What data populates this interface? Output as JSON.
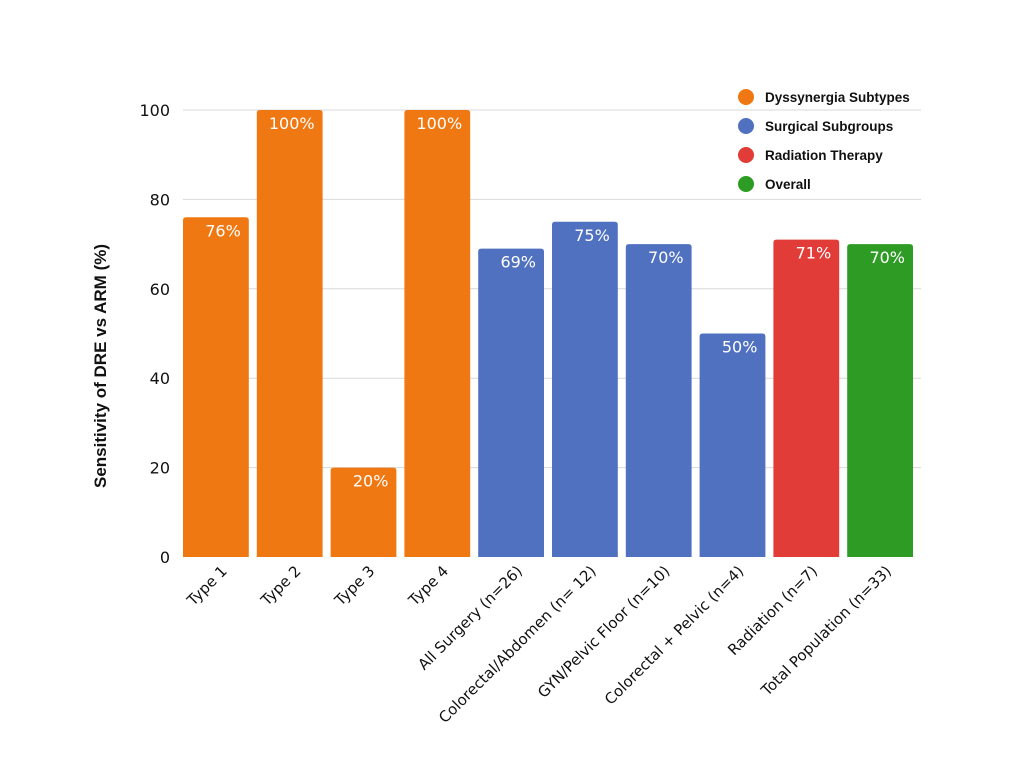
{
  "chart_data": {
    "type": "bar",
    "ylabel": "Sensitivity of DRE vs ARM (%)",
    "xlabel": "",
    "ylim": [
      0,
      100
    ],
    "yticks": [
      0,
      20,
      40,
      60,
      80,
      100
    ],
    "grid": true,
    "legend_position": "top-right",
    "groups": [
      {
        "name": "Dyssynergia Subtypes",
        "color": "#f07812"
      },
      {
        "name": "Surgical Subgroups",
        "color": "#5070c0"
      },
      {
        "name": "Radiation Therapy",
        "color": "#e23c38"
      },
      {
        "name": "Overall",
        "color": "#2e9c24"
      }
    ],
    "categories": [
      "Type 1",
      "Type 2",
      "Type 3",
      "Type 4",
      "All Surgery (n=26)",
      "Colorectal/Abdomen (n= 12)",
      "GYN/Pelvic Floor (n=10)",
      "Colorectal + Pelvic (n=4)",
      "Radiation (n=7)",
      "Total Population (n=33)"
    ],
    "values": [
      76,
      100,
      20,
      100,
      69,
      75,
      70,
      50,
      71,
      70
    ],
    "value_labels": [
      "76%",
      "100%",
      "20%",
      "100%",
      "69%",
      "75%",
      "70%",
      "50%",
      "71%",
      "70%"
    ],
    "bar_group": [
      0,
      0,
      0,
      0,
      1,
      1,
      1,
      1,
      2,
      3
    ]
  }
}
